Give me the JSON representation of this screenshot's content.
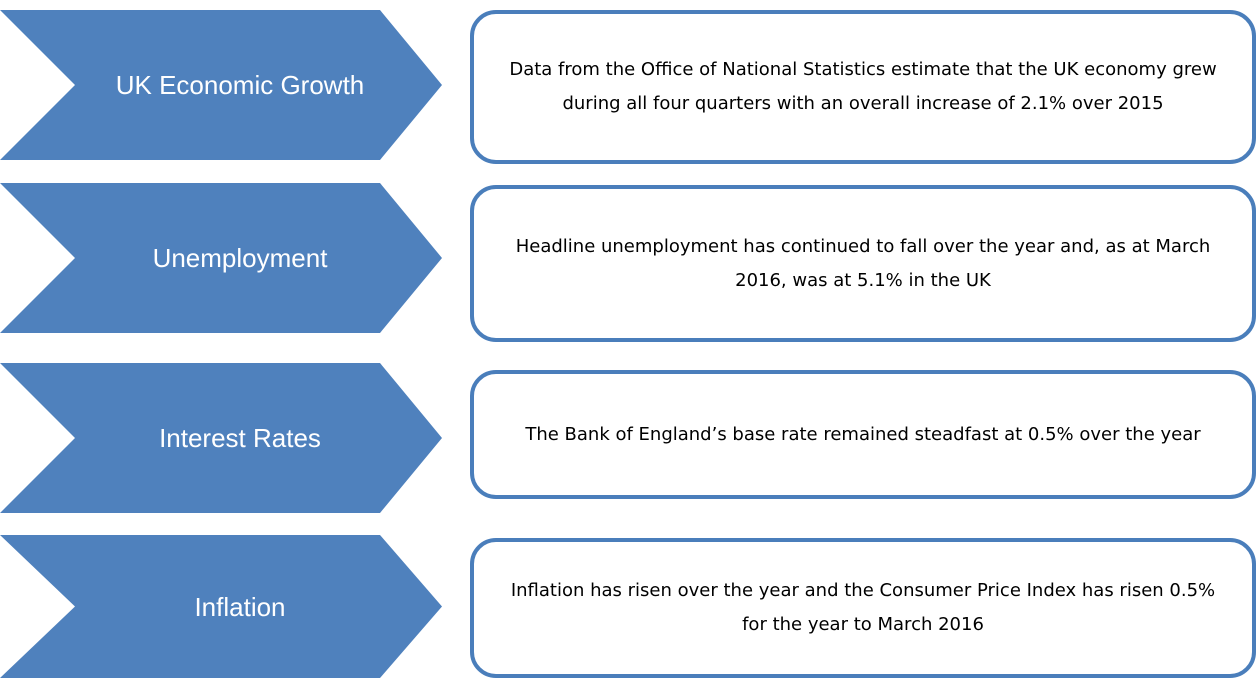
{
  "items": [
    {
      "label": "UK Economic Growth",
      "description": "Data from the Office of National Statistics estimate that the UK economy grew during all four quarters with an overall increase of 2.1% over 2015"
    },
    {
      "label": "Unemployment",
      "description": "Headline unemployment has continued to fall over the year and, as at March 2016, was at 5.1% in the UK"
    },
    {
      "label": "Interest Rates",
      "description": "The Bank of England’s base rate remained steadfast at 0.5% over the year"
    },
    {
      "label": "Inflation",
      "description": "Inflation has risen over the year and the Consumer Price Index has risen 0.5% for the year to March 2016"
    }
  ]
}
